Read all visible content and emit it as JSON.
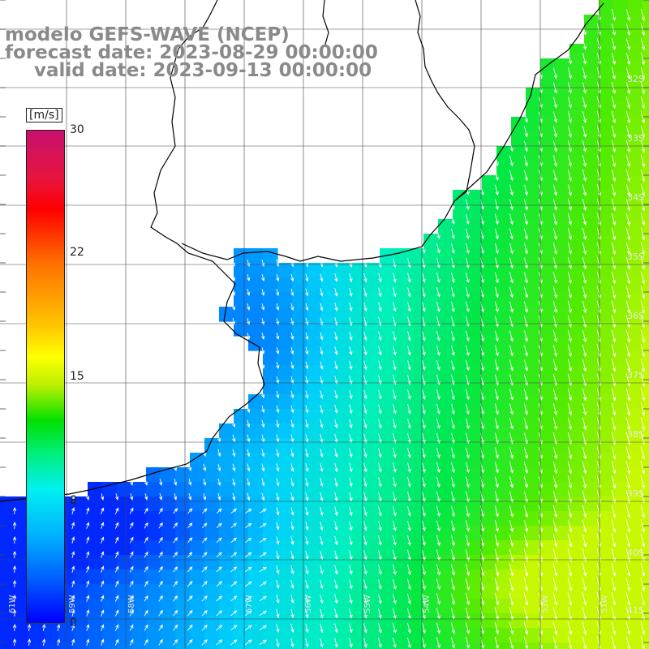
{
  "header": {
    "model_line": "modelo GEFS-WAVE (NCEP)",
    "forecast_line": "forecast date: 2023-08-29 00:00:00",
    "valid_line": "valid date: 2023-09-13 00:00:00"
  },
  "colorbar": {
    "unit": "[m/s]",
    "ticks": [
      "30",
      "22",
      "15",
      "8",
      "0"
    ],
    "colors": [
      "#c8106e",
      "#ff0000",
      "#ff7000",
      "#ffff00",
      "#00e000",
      "#00f0f0",
      "#0060ff",
      "#0000ff"
    ]
  },
  "map_labels": {
    "lat": [
      "32S",
      "33S",
      "34S",
      "35S",
      "36S",
      "37S",
      "38S",
      "39S",
      "40S",
      "41S"
    ],
    "lon": [
      "61W",
      "59W",
      "58W",
      "57W",
      "56W",
      "55W",
      "54W",
      "53W",
      "51W"
    ]
  },
  "colors": {
    "land": "#ffffff",
    "coast": "#000000",
    "grid": "#444444",
    "vector": "#ffffff"
  }
}
